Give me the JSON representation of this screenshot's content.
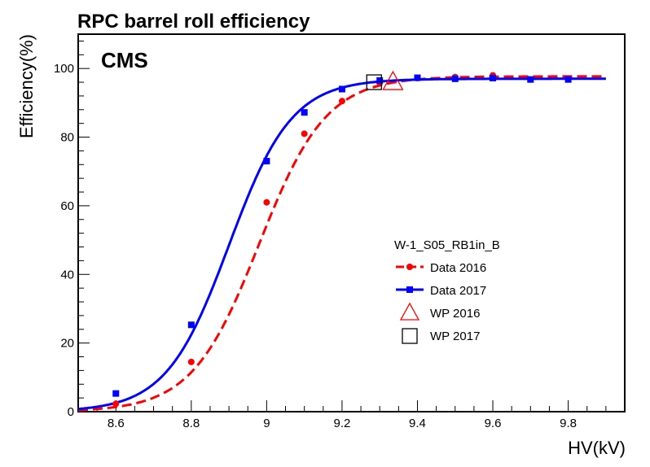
{
  "chart_data": {
    "type": "line",
    "title": "RPC barrel roll efficiency",
    "watermark": "CMS",
    "xlabel": "HV(kV)",
    "ylabel": "Efficiency(%)",
    "xlim": [
      8.5,
      9.95
    ],
    "ylim": [
      0,
      110
    ],
    "xticks": [
      8.6,
      8.8,
      9,
      9.2,
      9.4,
      9.6,
      9.8
    ],
    "xtick_labels": [
      "8.6",
      "8.8",
      "9",
      "9.2",
      "9.4",
      "9.6",
      "9.8"
    ],
    "yticks": [
      0,
      20,
      40,
      60,
      80,
      100
    ],
    "ytick_labels": [
      "0",
      "20",
      "40",
      "60",
      "80",
      "100"
    ],
    "legend_header": "W-1_S05_RB1in_B",
    "series": [
      {
        "name": "Data 2016",
        "color": "#ff0000",
        "marker": "circle",
        "line": "dashed",
        "x": [
          8.6,
          8.8,
          9.0,
          9.1,
          9.2,
          9.3,
          9.4,
          9.5,
          9.6
        ],
        "y": [
          2.3,
          14.5,
          61.0,
          81.0,
          90.5,
          95.8,
          97.2,
          97.5,
          98.0
        ],
        "fit": {
          "emax": 97.7,
          "hv50": 8.98,
          "slope": 11.2
        }
      },
      {
        "name": "Data 2017",
        "color": "#0000ff",
        "marker": "square",
        "line": "solid",
        "x": [
          8.6,
          8.8,
          9.0,
          9.1,
          9.2,
          9.3,
          9.4,
          9.5,
          9.6,
          9.7,
          9.8
        ],
        "y": [
          5.3,
          25.3,
          73.0,
          87.2,
          94.0,
          96.5,
          97.3,
          97.0,
          97.2,
          96.8,
          96.8
        ],
        "fit": {
          "emax": 97.0,
          "hv50": 8.9,
          "slope": 12.0
        }
      }
    ],
    "working_points": [
      {
        "name": "WP 2016",
        "marker": "triangle",
        "color": "#ff0000",
        "x": 9.335,
        "y": 96.0
      },
      {
        "name": "WP 2017",
        "marker": "square-open",
        "color": "#000000",
        "x": 9.285,
        "y": 96.0
      }
    ]
  }
}
